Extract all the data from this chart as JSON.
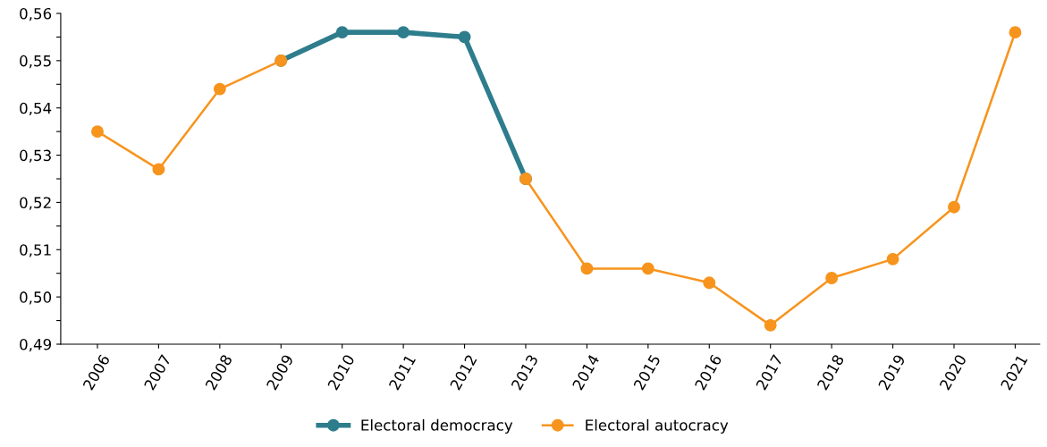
{
  "chart_data": {
    "type": "line",
    "categories": [
      "2006",
      "2007",
      "2008",
      "2009",
      "2010",
      "2011",
      "2012",
      "2013",
      "2014",
      "2015",
      "2016",
      "2017",
      "2018",
      "2019",
      "2020",
      "2021"
    ],
    "series": [
      {
        "name": "Electoral democracy",
        "color": "#2e7d8c",
        "values": [
          null,
          null,
          null,
          0.55,
          0.556,
          0.556,
          0.555,
          0.525,
          null,
          null,
          null,
          null,
          null,
          null,
          null,
          null
        ]
      },
      {
        "name": "Electoral autocracy",
        "color": "#f7941d",
        "values": [
          0.535,
          0.527,
          0.544,
          0.55,
          null,
          null,
          null,
          0.525,
          0.506,
          0.506,
          0.503,
          0.494,
          0.504,
          0.508,
          0.519,
          0.556
        ]
      }
    ],
    "ylim": [
      0.49,
      0.56
    ],
    "yticks": [
      {
        "value": 0.49,
        "label": "0,49"
      },
      {
        "value": 0.495,
        "label": null
      },
      {
        "value": 0.5,
        "label": "0,50"
      },
      {
        "value": 0.505,
        "label": null
      },
      {
        "value": 0.51,
        "label": "0,51"
      },
      {
        "value": 0.515,
        "label": null
      },
      {
        "value": 0.52,
        "label": "0,52"
      },
      {
        "value": 0.525,
        "label": null
      },
      {
        "value": 0.53,
        "label": "0,53"
      },
      {
        "value": 0.535,
        "label": null
      },
      {
        "value": 0.54,
        "label": "0,54"
      },
      {
        "value": 0.545,
        "label": null
      },
      {
        "value": 0.55,
        "label": "0,55"
      },
      {
        "value": 0.555,
        "label": null
      },
      {
        "value": 0.56,
        "label": "0,56"
      }
    ],
    "grid": false,
    "legend": "bottom",
    "marker": "circle",
    "line_style": "solid"
  }
}
